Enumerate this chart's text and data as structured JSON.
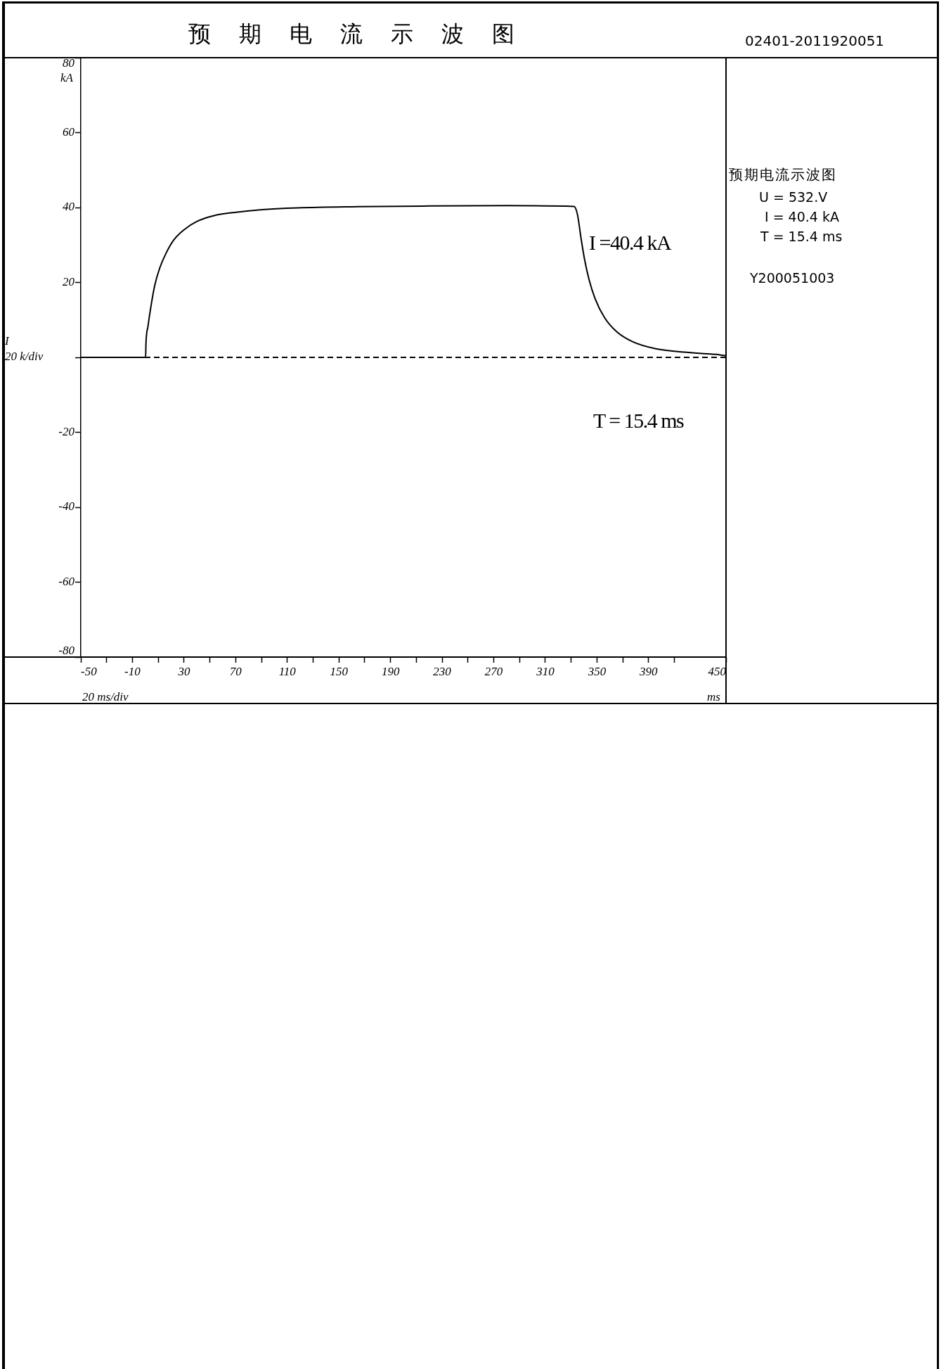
{
  "chart_data": {
    "type": "line",
    "title": "预期电流示波图",
    "xlabel": "ms",
    "ylabel": "kA",
    "annotations": [
      "02401-2011920051",
      "I",
      "20 k/div",
      "20 ms/div",
      "I =40.4 kA",
      "T = 15.4 ms",
      "预期电流示波图",
      "U = 532.V",
      "I = 40.4 kA",
      "T = 15.4 ms",
      "Y200051003"
    ],
    "x": [
      -50,
      0.2,
      0.5,
      2.0,
      4.7,
      7.4,
      11.1,
      15.6,
      21.9,
      30.1,
      40.1,
      52.8,
      69.1,
      89.0,
      118.1,
      160,
      220,
      280,
      332.2,
      334.9,
      337.6,
      340.3,
      343.9,
      348.5,
      355.7,
      364.8,
      377.5,
      395.6,
      417.4,
      444.6,
      450
    ],
    "series": [
      {
        "color": "#000000",
        "values": [
          0,
          0,
          3.9,
          8.2,
          14.4,
          19.4,
          23.8,
          27.5,
          31.3,
          34.1,
          36.3,
          37.8,
          38.7,
          39.4,
          39.9,
          40.2,
          40.4,
          40.5,
          40.3,
          38.1,
          31.9,
          26.3,
          20.7,
          15.7,
          10.7,
          7.0,
          4.2,
          2.3,
          1.4,
          0.7,
          0.4
        ]
      }
    ],
    "xlim": [
      -50,
      450
    ],
    "xticks": [
      -50,
      {
        "value": -30,
        "label": null
      },
      -10,
      {
        "value": 10,
        "label": null
      },
      30,
      {
        "value": 50,
        "label": null
      },
      70,
      {
        "value": 90,
        "label": null
      },
      110,
      {
        "value": 130,
        "label": null
      },
      150,
      {
        "value": 170,
        "label": null
      },
      190,
      {
        "value": 210,
        "label": null
      },
      230,
      {
        "value": 250,
        "label": null
      },
      270,
      {
        "value": 290,
        "label": null
      },
      310,
      {
        "value": 330,
        "label": null
      },
      350,
      {
        "value": 370,
        "label": null
      },
      390,
      {
        "value": 410,
        "label": null
      },
      450
    ],
    "ylim": [
      -80,
      80
    ],
    "yticks": [
      -80,
      -60,
      -40,
      -20,
      {
        "value": 0,
        "label": null
      },
      20,
      40,
      60,
      80
    ],
    "ref_lines": [
      {
        "axis": "y",
        "value": 0,
        "line_style": "dashed",
        "color": "#000000"
      }
    ],
    "marker": "none",
    "line_style": "solid"
  }
}
